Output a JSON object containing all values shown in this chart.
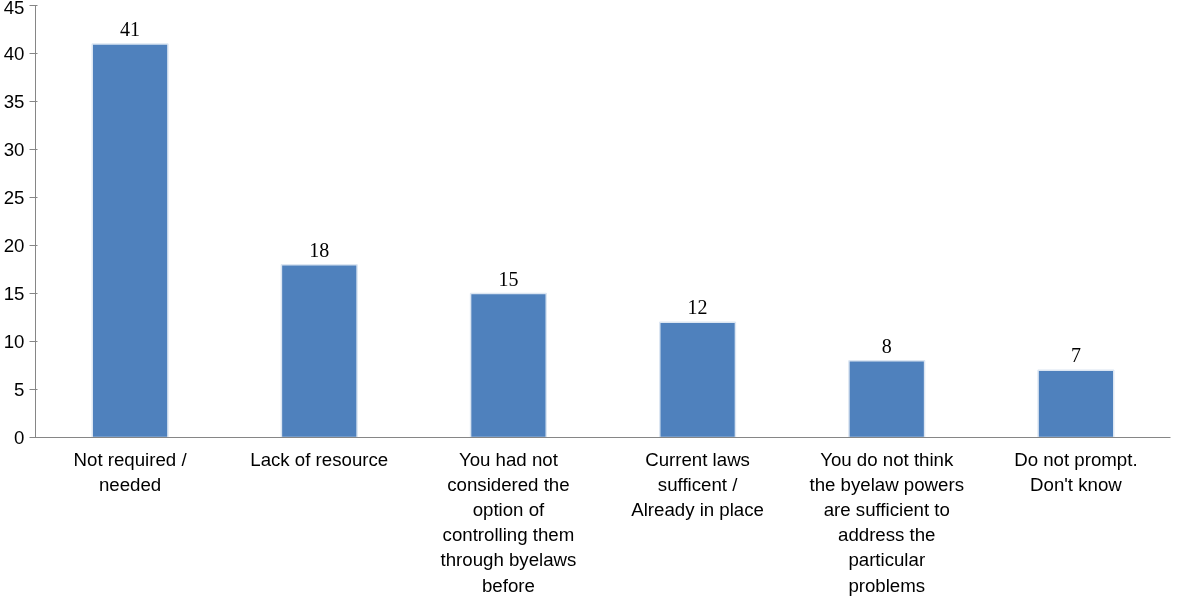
{
  "chart_data": {
    "type": "bar",
    "categories": [
      "Not required / needed",
      "Lack of resource",
      "You had not considered the option of controlling them through byelaws before",
      "Current laws sufficent / Already in place",
      "You do not think the byelaw powers are sufficient to address the particular problems",
      "Do not prompt. Don't know"
    ],
    "values": [
      41,
      18,
      15,
      12,
      8,
      7
    ],
    "color": "#4f81bd",
    "ylim": [
      0,
      45
    ],
    "yticks": [
      0,
      5,
      10,
      15,
      20,
      25,
      30,
      35,
      40,
      45
    ],
    "grid": false,
    "data_labels": true
  }
}
